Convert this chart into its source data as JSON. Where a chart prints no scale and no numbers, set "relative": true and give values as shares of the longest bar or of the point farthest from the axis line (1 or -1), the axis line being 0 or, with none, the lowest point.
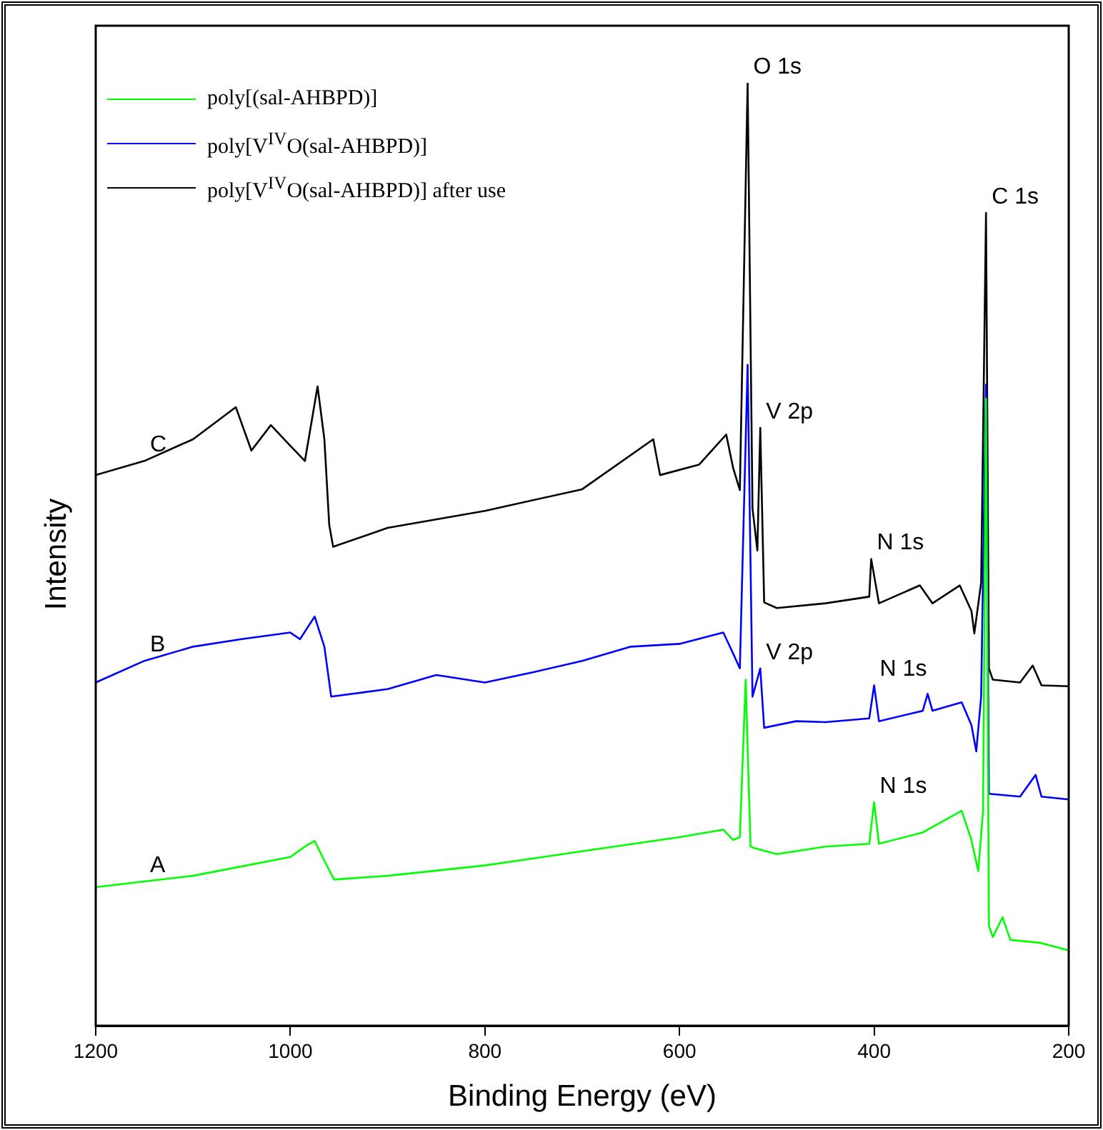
{
  "chart_data": {
    "type": "line",
    "relative": true,
    "xlabel": "Binding Energy (eV)",
    "ylabel": "Intensity",
    "xlim": [
      1200,
      200
    ],
    "xticks": [
      1200,
      1000,
      800,
      600,
      400,
      200
    ],
    "legend": "top left",
    "grid": false,
    "marker": "none",
    "line_style": "solid",
    "tick_labels": "x",
    "series": [
      {
        "name": "poly[(sal-AHBPD)]",
        "color": "#00ff00",
        "x": [
          1200,
          1150,
          1100,
          1000,
          985,
          975,
          965,
          955,
          900,
          800,
          700,
          600,
          555,
          545,
          538,
          532,
          527,
          522,
          500,
          450,
          405,
          400,
          395,
          350,
          310,
          300,
          293,
          288,
          285,
          282,
          278,
          268,
          260,
          230,
          200
        ],
        "values": [
          0.147,
          0.153,
          0.159,
          0.179,
          0.19,
          0.196,
          0.175,
          0.155,
          0.159,
          0.17,
          0.185,
          0.2,
          0.208,
          0.197,
          0.2,
          0.367,
          0.19,
          0.188,
          0.182,
          0.19,
          0.193,
          0.237,
          0.193,
          0.205,
          0.228,
          0.197,
          0.164,
          0.228,
          0.665,
          0.106,
          0.094,
          0.115,
          0.091,
          0.088,
          0.08
        ]
      },
      {
        "name": "poly[V$^{IV}$O(sal-AHBPD)]",
        "color": "#0000ff",
        "x": [
          1200,
          1150,
          1100,
          1050,
          1000,
          990,
          975,
          965,
          958,
          900,
          850,
          800,
          750,
          700,
          650,
          600,
          555,
          545,
          538,
          530,
          525,
          521,
          517,
          513,
          480,
          450,
          405,
          400,
          395,
          350,
          345,
          340,
          310,
          300,
          295,
          290,
          285,
          282,
          250,
          234,
          228,
          200
        ],
        "values": [
          0.364,
          0.387,
          0.402,
          0.41,
          0.417,
          0.41,
          0.434,
          0.402,
          0.349,
          0.357,
          0.372,
          0.364,
          0.375,
          0.387,
          0.402,
          0.405,
          0.417,
          0.395,
          0.379,
          0.701,
          0.349,
          0.364,
          0.379,
          0.316,
          0.323,
          0.322,
          0.326,
          0.361,
          0.323,
          0.334,
          0.352,
          0.334,
          0.343,
          0.319,
          0.291,
          0.349,
          0.68,
          0.246,
          0.243,
          0.266,
          0.243,
          0.24
        ]
      },
      {
        "name": "poly[V$^{IV}$O(sal-AHBPD)] after use",
        "color": "#000000",
        "x": [
          1200,
          1150,
          1100,
          1056,
          1040,
          1020,
          1000,
          985,
          972,
          965,
          960,
          956,
          900,
          800,
          700,
          627,
          620,
          580,
          552,
          545,
          538,
          530,
          525,
          520,
          517,
          513,
          500,
          450,
          405,
          403,
          395,
          353,
          340,
          312,
          300,
          297,
          290,
          285,
          282,
          278,
          250,
          237,
          228,
          200
        ],
        "values": [
          0.584,
          0.599,
          0.622,
          0.656,
          0.61,
          0.637,
          0.615,
          0.599,
          0.678,
          0.622,
          0.531,
          0.508,
          0.528,
          0.546,
          0.569,
          0.622,
          0.584,
          0.595,
          0.627,
          0.592,
          0.568,
          1.0,
          0.549,
          0.504,
          0.634,
          0.449,
          0.443,
          0.448,
          0.455,
          0.495,
          0.448,
          0.467,
          0.448,
          0.467,
          0.44,
          0.416,
          0.47,
          0.862,
          0.379,
          0.367,
          0.364,
          0.382,
          0.361,
          0.36
        ]
      }
    ],
    "annotations": [
      {
        "text": "O 1s",
        "x": 530,
        "y": 1.0
      },
      {
        "text": "C 1s",
        "x": 285,
        "y": 0.862
      },
      {
        "text": "V 2p",
        "x": 517,
        "y": 0.634
      },
      {
        "text": "V 2p",
        "x": 517,
        "y": 0.379
      },
      {
        "text": "N 1s",
        "x": 403,
        "y": 0.495
      },
      {
        "text": "N 1s",
        "x": 400,
        "y": 0.361
      },
      {
        "text": "N 1s",
        "x": 400,
        "y": 0.237
      },
      {
        "text": "C",
        "x": 1150,
        "y": 0.599
      },
      {
        "text": "B",
        "x": 1150,
        "y": 0.387
      },
      {
        "text": "A",
        "x": 1150,
        "y": 0.153
      }
    ]
  }
}
